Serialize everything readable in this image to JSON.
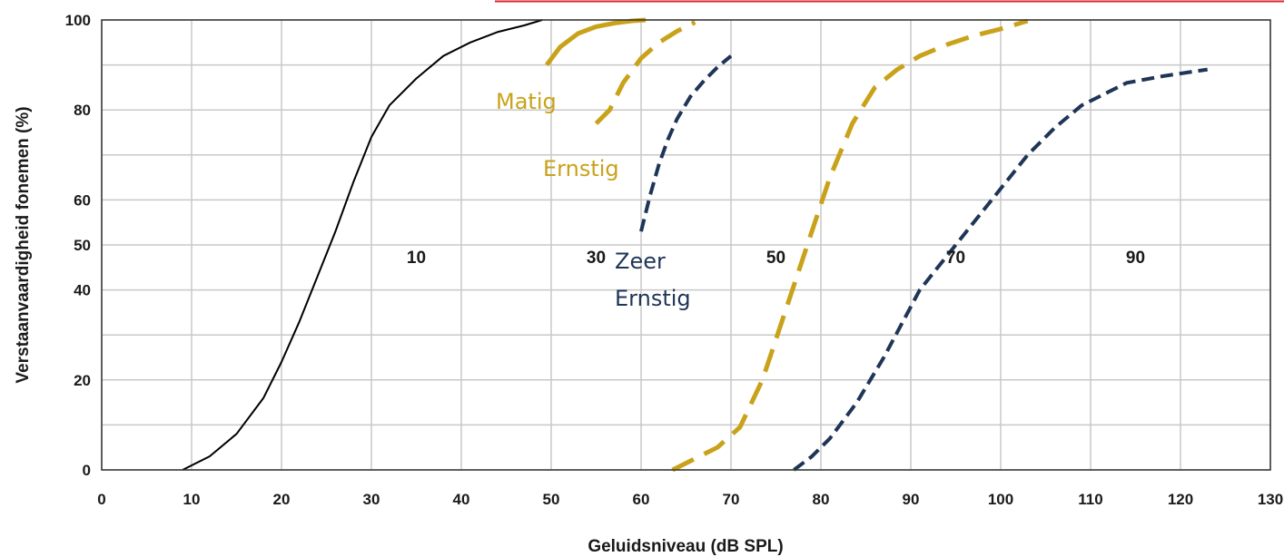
{
  "chart_data": {
    "type": "line",
    "xlabel": "Geluidsniveau (dB SPL)",
    "ylabel": "Verstaanvaardigheid fonemen (%)",
    "xlim": [
      0,
      130
    ],
    "ylim": [
      0,
      100
    ],
    "x_ticks": [
      "0",
      "10",
      "20",
      "30",
      "40",
      "50",
      "60",
      "70",
      "80",
      "90",
      "100",
      "110",
      "120",
      "130"
    ],
    "y_ticks": [
      "0",
      "20",
      "40",
      "50",
      "60",
      "80",
      "100"
    ],
    "grid": true,
    "region_labels": [
      "10",
      "30",
      "50",
      "70",
      "90"
    ],
    "colors": {
      "normal": "#000000",
      "gold": "#c9a21a",
      "navy": "#1f3557",
      "grid": "#c8c8c8",
      "top_line": "#d9262c"
    },
    "series": [
      {
        "style": "solid-black",
        "x": [
          9,
          12,
          15,
          18,
          20,
          22,
          24,
          26,
          28,
          30,
          32,
          35,
          38,
          41,
          44,
          47,
          49
        ],
        "y": [
          0,
          3,
          8,
          16,
          24,
          33,
          43,
          53,
          64,
          74,
          81,
          87,
          92,
          95,
          97.3,
          98.8,
          100
        ]
      },
      {
        "name": "Matig",
        "style": "solid-gold",
        "x": [
          49.5,
          51,
          53,
          55,
          57,
          59,
          60.5
        ],
        "y": [
          90,
          94,
          97,
          98.5,
          99.3,
          99.8,
          100
        ]
      },
      {
        "name": "Ernstig",
        "style": "dashed-gold",
        "x": [
          55,
          56.5,
          58,
          60,
          62,
          64,
          66
        ],
        "y": [
          77,
          80,
          86,
          91.5,
          95,
          97.5,
          99.5
        ]
      },
      {
        "name": "Zeer Ernstig",
        "style": "dashed-navy",
        "x": [
          60,
          61,
          62,
          63,
          64,
          65.5,
          67,
          68.5,
          70
        ],
        "y": [
          53,
          61,
          68,
          73.5,
          78,
          83,
          86.5,
          89.5,
          92
        ]
      },
      {
        "style": "dashed-gold",
        "x": [
          63.5,
          66,
          68.5,
          71,
          73.5,
          76,
          78.5,
          81,
          83.5,
          86,
          88.5,
          91,
          94,
          97,
          100,
          103
        ],
        "y": [
          0,
          2.5,
          5,
          9.5,
          20,
          35,
          50,
          65,
          77,
          85,
          89,
          92,
          94.5,
          96.5,
          98,
          99.8
        ]
      },
      {
        "style": "dashed-navy",
        "x": [
          77,
          79,
          81,
          84,
          87,
          91,
          95,
          99,
          103,
          106,
          109,
          114,
          118,
          123
        ],
        "y": [
          0,
          3,
          7,
          15,
          25,
          40,
          50,
          60,
          70,
          76,
          81,
          86,
          87.5,
          89
        ]
      }
    ]
  }
}
